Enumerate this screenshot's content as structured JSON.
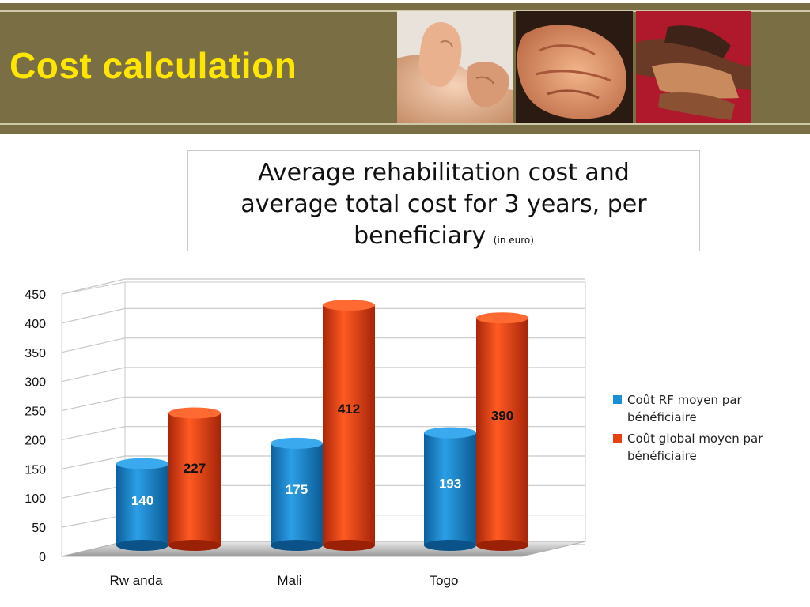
{
  "header": {
    "title": "Cost calculation",
    "images": [
      "hands-photo-1",
      "hands-photo-2",
      "hands-photo-3"
    ]
  },
  "subtitle": {
    "line1": "Average rehabilitation cost and",
    "line2": "average total cost for 3 years, per",
    "line3": "beneficiary",
    "unit": "(in euro)"
  },
  "colors": {
    "band": "#7a6e45",
    "title": "#ffe600",
    "series_rf": "#1a8fd6",
    "series_global": "#e8400e"
  },
  "chart_data": {
    "type": "bar",
    "categories": [
      "Rw anda",
      "Mali",
      "Togo"
    ],
    "series": [
      {
        "name": "Coût RF moyen par bénéficiaire",
        "values": [
          140,
          175,
          193
        ],
        "color": "#1a8fd6"
      },
      {
        "name": "Coût global moyen par bénéficiaire",
        "values": [
          227,
          412,
          390
        ],
        "color": "#e8400e"
      }
    ],
    "yticks": [
      "0",
      "50",
      "100",
      "150",
      "200",
      "250",
      "300",
      "350",
      "400",
      "450"
    ],
    "ylim": [
      0,
      450
    ],
    "grid": true,
    "legend": "right",
    "title": "",
    "xlabel": "",
    "ylabel": ""
  }
}
